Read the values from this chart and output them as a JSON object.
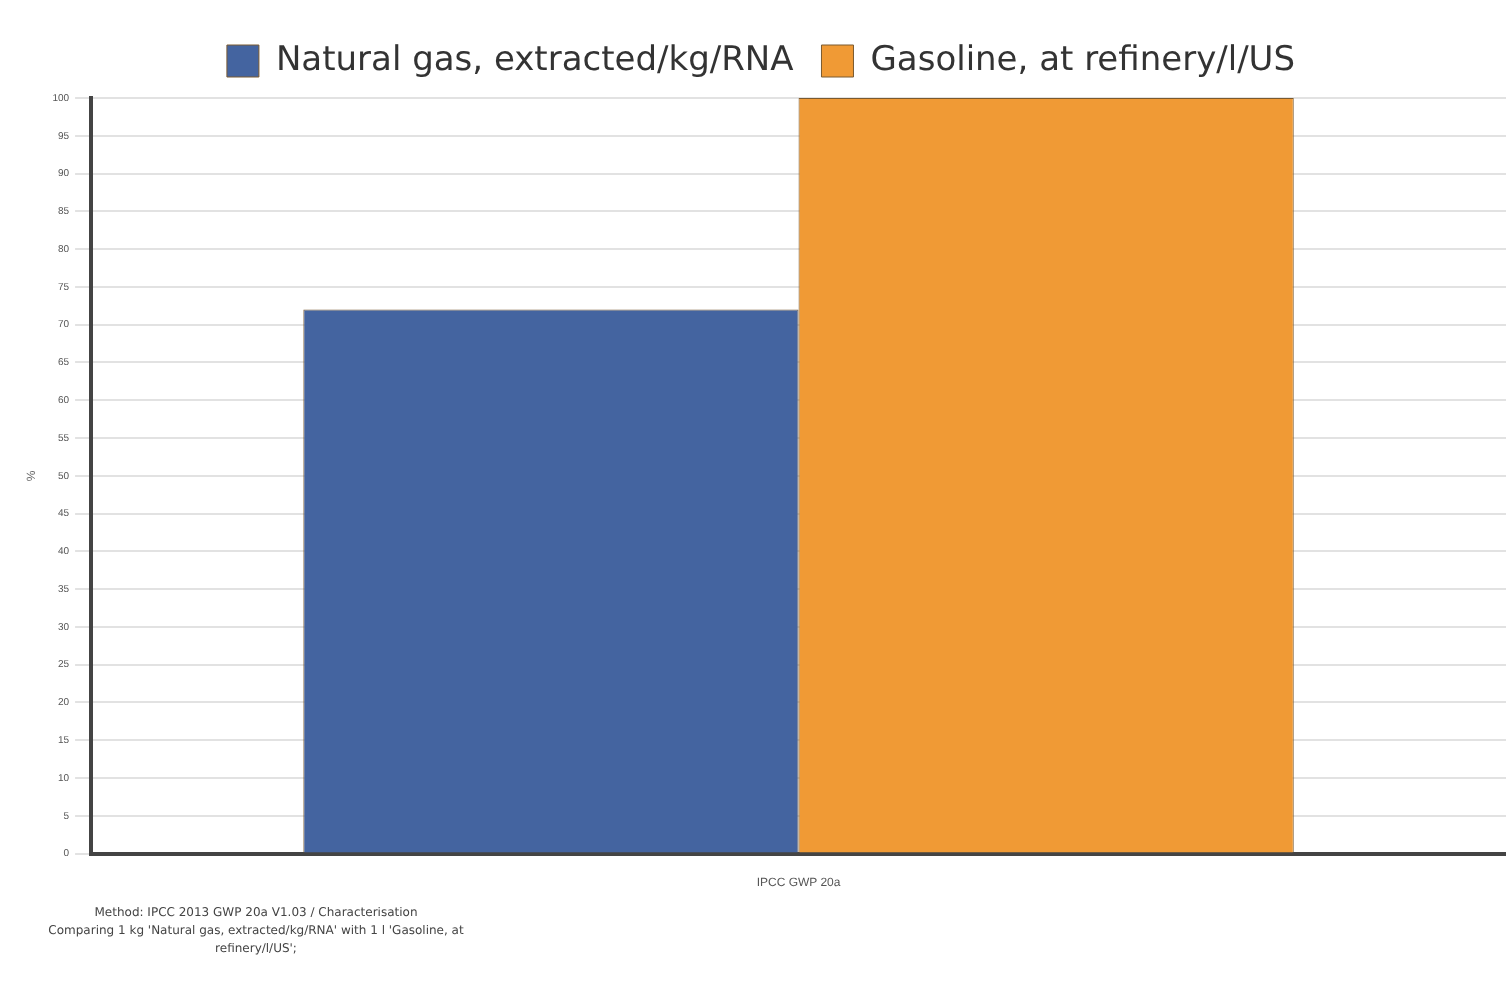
{
  "chart_data": {
    "type": "bar",
    "categories": [
      "IPCC GWP 20a"
    ],
    "series": [
      {
        "name": "Natural gas, extracted/kg/RNA",
        "color": "#4464a0",
        "values": [
          72
        ]
      },
      {
        "name": "Gasoline, at refinery/l/US",
        "color": "#f09a35",
        "values": [
          100
        ]
      }
    ],
    "ylabel": "%",
    "ylim": [
      0,
      100
    ],
    "yticks": [
      0,
      5,
      10,
      15,
      20,
      25,
      30,
      35,
      40,
      45,
      50,
      55,
      60,
      65,
      70,
      75,
      80,
      85,
      90,
      95,
      100
    ],
    "grid": "y",
    "legend": "top",
    "annotations": [
      "Method: IPCC 2013 GWP 20a V1.03 / Characterisation",
      "Comparing 1 kg 'Natural gas, extracted/kg/RNA' with 1 l 'Gasoline, at refinery/l/US';"
    ]
  }
}
